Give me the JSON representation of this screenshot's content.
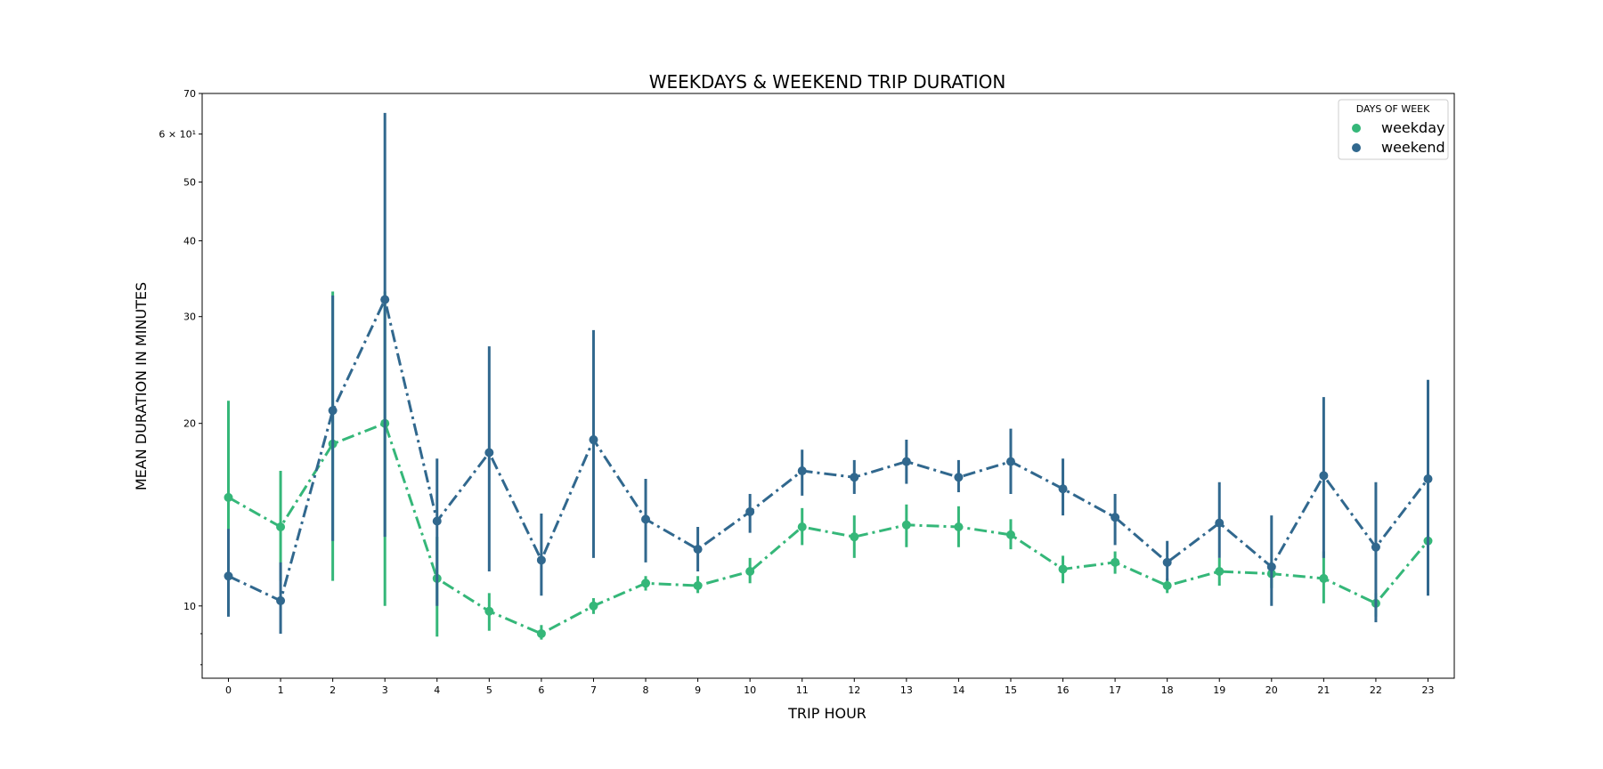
{
  "chart_data": {
    "type": "line",
    "title": "WEEKDAYS & WEEKEND TRIP DURATION",
    "xlabel": "TRIP HOUR",
    "ylabel": "MEAN DURATION IN MINUTES",
    "yscale": "log",
    "ylim": [
      7.6,
      70
    ],
    "categories": [
      "0",
      "1",
      "2",
      "3",
      "4",
      "5",
      "6",
      "7",
      "8",
      "9",
      "10",
      "11",
      "12",
      "13",
      "14",
      "15",
      "16",
      "17",
      "18",
      "19",
      "20",
      "21",
      "22",
      "23"
    ],
    "yticks": [
      {
        "value": 10,
        "label": "10"
      },
      {
        "value": 20,
        "label": "20"
      },
      {
        "value": 30,
        "label": "30"
      },
      {
        "value": 40,
        "label": "40"
      },
      {
        "value": 50,
        "label": "50"
      },
      {
        "value": 60,
        "label": "6 × 10¹"
      },
      {
        "value": 70,
        "label": "70"
      }
    ],
    "legend": {
      "title": "DAYS OF WEEK",
      "position": "upper right"
    },
    "grid": false,
    "series": [
      {
        "name": "weekday",
        "color": "#35b779",
        "dash": "dashdot",
        "values": [
          15.1,
          13.5,
          18.5,
          20.0,
          11.1,
          9.8,
          9.0,
          10.0,
          10.9,
          10.8,
          11.4,
          13.5,
          13.0,
          13.6,
          13.5,
          13.1,
          11.5,
          11.8,
          10.8,
          11.4,
          11.3,
          11.1,
          10.1,
          12.8
        ],
        "err_low": [
          13.0,
          11.0,
          11.0,
          10.0,
          8.9,
          9.1,
          8.8,
          9.7,
          10.6,
          10.5,
          10.9,
          12.6,
          12.0,
          12.5,
          12.5,
          12.4,
          10.9,
          11.3,
          10.5,
          10.8,
          10.7,
          10.1,
          9.6,
          11.7
        ],
        "err_high": [
          21.8,
          16.7,
          33.0,
          33.0,
          13.0,
          10.5,
          9.3,
          10.3,
          11.2,
          11.2,
          12.0,
          14.5,
          14.1,
          14.7,
          14.6,
          13.9,
          12.1,
          12.3,
          11.1,
          12.0,
          11.8,
          12.3,
          10.5,
          13.3
        ]
      },
      {
        "name": "weekend",
        "color": "#31688e",
        "dash": "dashdot",
        "values": [
          11.2,
          10.2,
          21.0,
          32.0,
          13.8,
          17.9,
          11.9,
          18.8,
          13.9,
          12.4,
          14.3,
          16.7,
          16.3,
          17.3,
          16.3,
          17.3,
          15.6,
          14.0,
          11.8,
          13.7,
          11.6,
          16.4,
          12.5,
          16.2
        ],
        "err_low": [
          9.6,
          9.0,
          12.8,
          13.0,
          10.0,
          11.4,
          10.4,
          12.0,
          11.8,
          11.4,
          13.2,
          15.2,
          15.3,
          15.9,
          15.4,
          15.3,
          14.1,
          12.6,
          11.0,
          12.0,
          10.0,
          12.0,
          9.4,
          10.4
        ],
        "err_high": [
          13.4,
          11.8,
          32.5,
          65.0,
          17.5,
          26.8,
          14.2,
          28.5,
          16.2,
          13.5,
          15.3,
          18.1,
          17.4,
          18.8,
          17.4,
          19.6,
          17.5,
          15.3,
          12.8,
          16.0,
          14.1,
          22.1,
          16.0,
          23.6
        ]
      }
    ]
  }
}
